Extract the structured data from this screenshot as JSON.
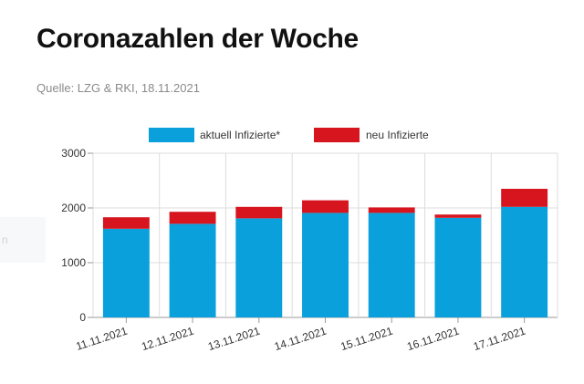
{
  "header": {
    "title": "Coronazahlen der Woche",
    "source": "Quelle: LZG & RKI, 18.11.2021"
  },
  "side": {
    "label": "n"
  },
  "colors": {
    "series0": "#0aa0dc",
    "series1": "#d6151f",
    "grid": "#dcdcdc"
  },
  "chart_data": {
    "type": "bar",
    "stacked": true,
    "categories": [
      "11.11.2021",
      "12.11.2021",
      "13.11.2021",
      "14.11.2021",
      "15.11.2021",
      "16.11.2021",
      "17.11.2021"
    ],
    "series": [
      {
        "name": "aktuell Infizierte*",
        "values": [
          1620,
          1710,
          1810,
          1910,
          1910,
          1820,
          2020
        ]
      },
      {
        "name": "neu Infizierte",
        "values": [
          210,
          220,
          210,
          230,
          100,
          60,
          330
        ]
      }
    ],
    "yticks": [
      0,
      1000,
      2000,
      3000
    ],
    "ylim": [
      0,
      3000
    ],
    "grid": true,
    "legend": "top"
  }
}
